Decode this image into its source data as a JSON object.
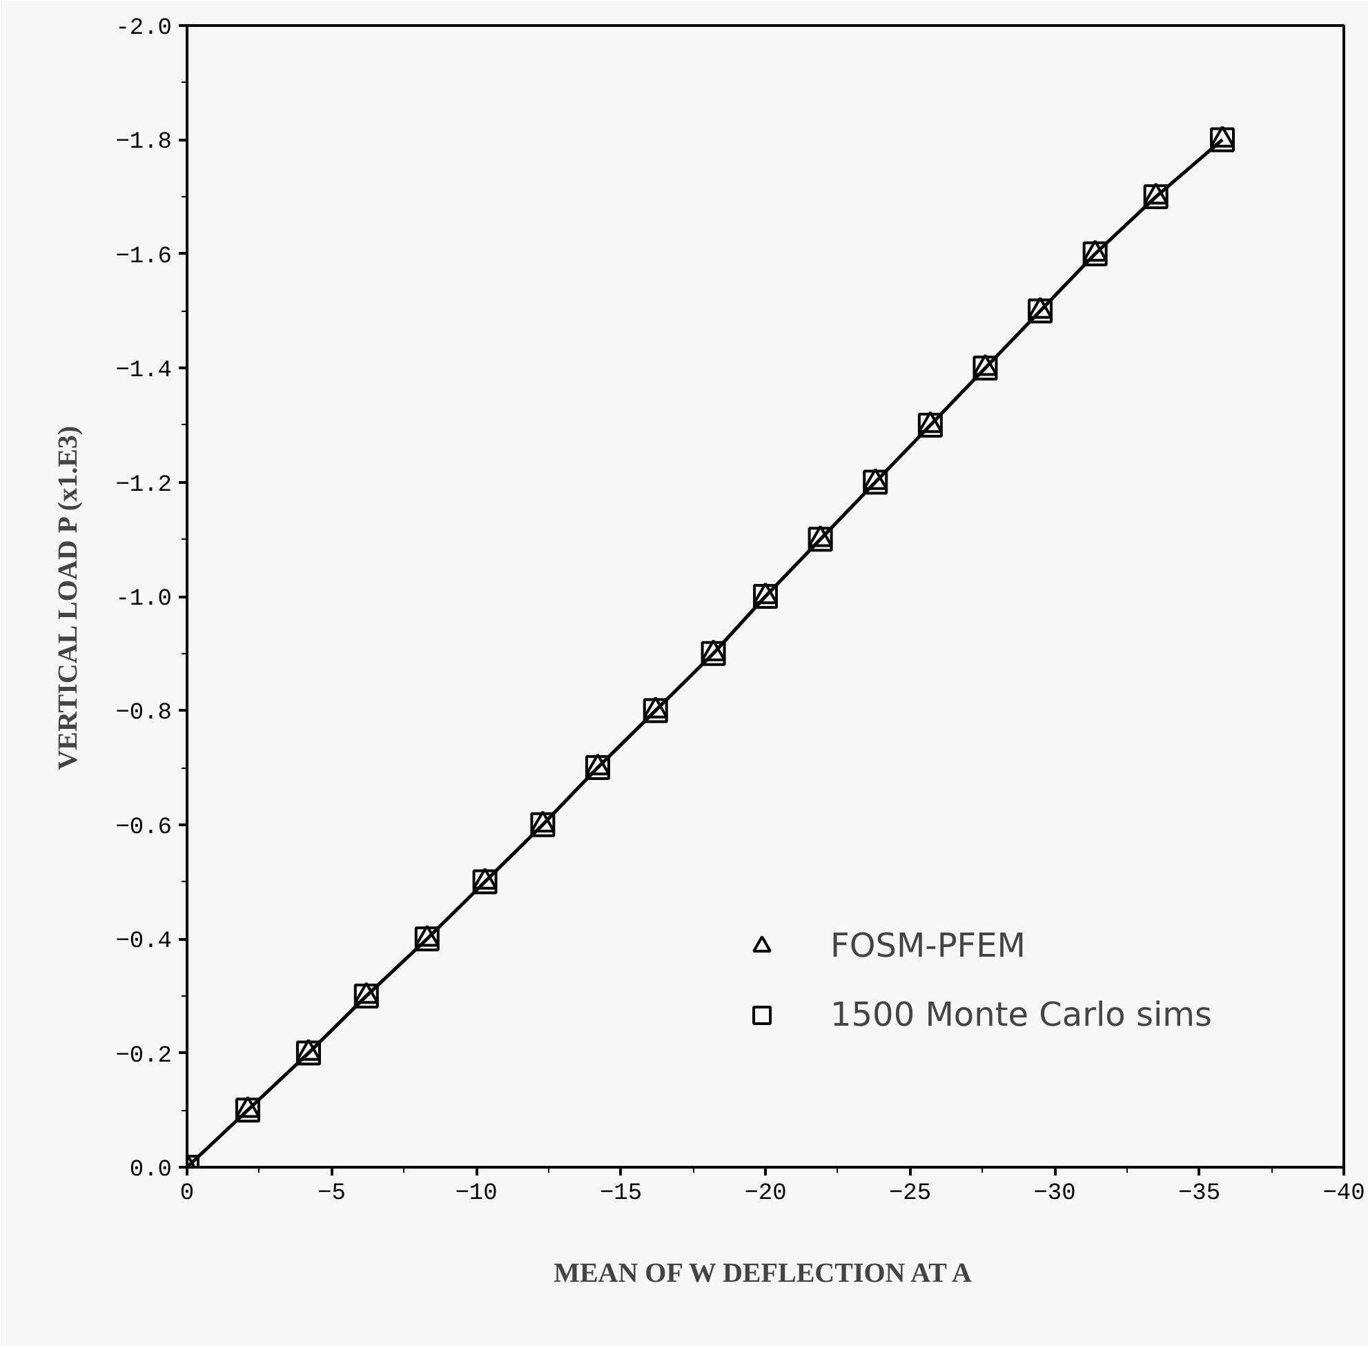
{
  "chart_data": {
    "type": "scatter",
    "xlabel": "MEAN OF W DEFLECTION AT A",
    "ylabel": "VERTICAL LOAD P (x1.E3)",
    "x": [
      0,
      -2.1,
      -4.2,
      -6.2,
      -8.3,
      -10.3,
      -12.3,
      -14.2,
      -16.2,
      -18.2,
      -20.0,
      -21.9,
      -23.8,
      -25.7,
      -27.6,
      -29.5,
      -31.4,
      -33.5,
      -35.8
    ],
    "series": [
      {
        "name": "FOSM-PFEM",
        "type": "line",
        "marker": "triangle",
        "color": "#000000",
        "values": [
          0,
          -0.1,
          -0.2,
          -0.3,
          -0.4,
          -0.5,
          -0.6,
          -0.7,
          -0.8,
          -0.9,
          -1.0,
          -1.1,
          -1.2,
          -1.3,
          -1.4,
          -1.5,
          -1.6,
          -1.7,
          -1.8
        ]
      },
      {
        "name": "1500 Monte Carlo sims",
        "marker": "square",
        "color": "#000000",
        "values": [
          0,
          -0.1,
          -0.2,
          -0.3,
          -0.4,
          -0.5,
          -0.6,
          -0.7,
          -0.8,
          -0.9,
          -1.0,
          -1.1,
          -1.2,
          -1.3,
          -1.4,
          -1.5,
          -1.6,
          -1.7,
          -1.8
        ]
      }
    ],
    "xlim": [
      0,
      -40
    ],
    "ylim": [
      0,
      -2.0
    ],
    "xticks": [
      0,
      -5,
      -10,
      -15,
      -20,
      -25,
      -30,
      -35,
      -40
    ],
    "yticks": [
      {
        "value": 0,
        "label": "0.0"
      },
      -0.2,
      -0.4,
      -0.6,
      -0.8,
      {
        "value": -1.0,
        "label": "-1.0"
      },
      -1.2,
      -1.4,
      -1.6,
      -1.8,
      {
        "value": -2.0,
        "label": "-2.0"
      }
    ],
    "grid": false,
    "legend": "bottom right",
    "line_style": "solid"
  }
}
